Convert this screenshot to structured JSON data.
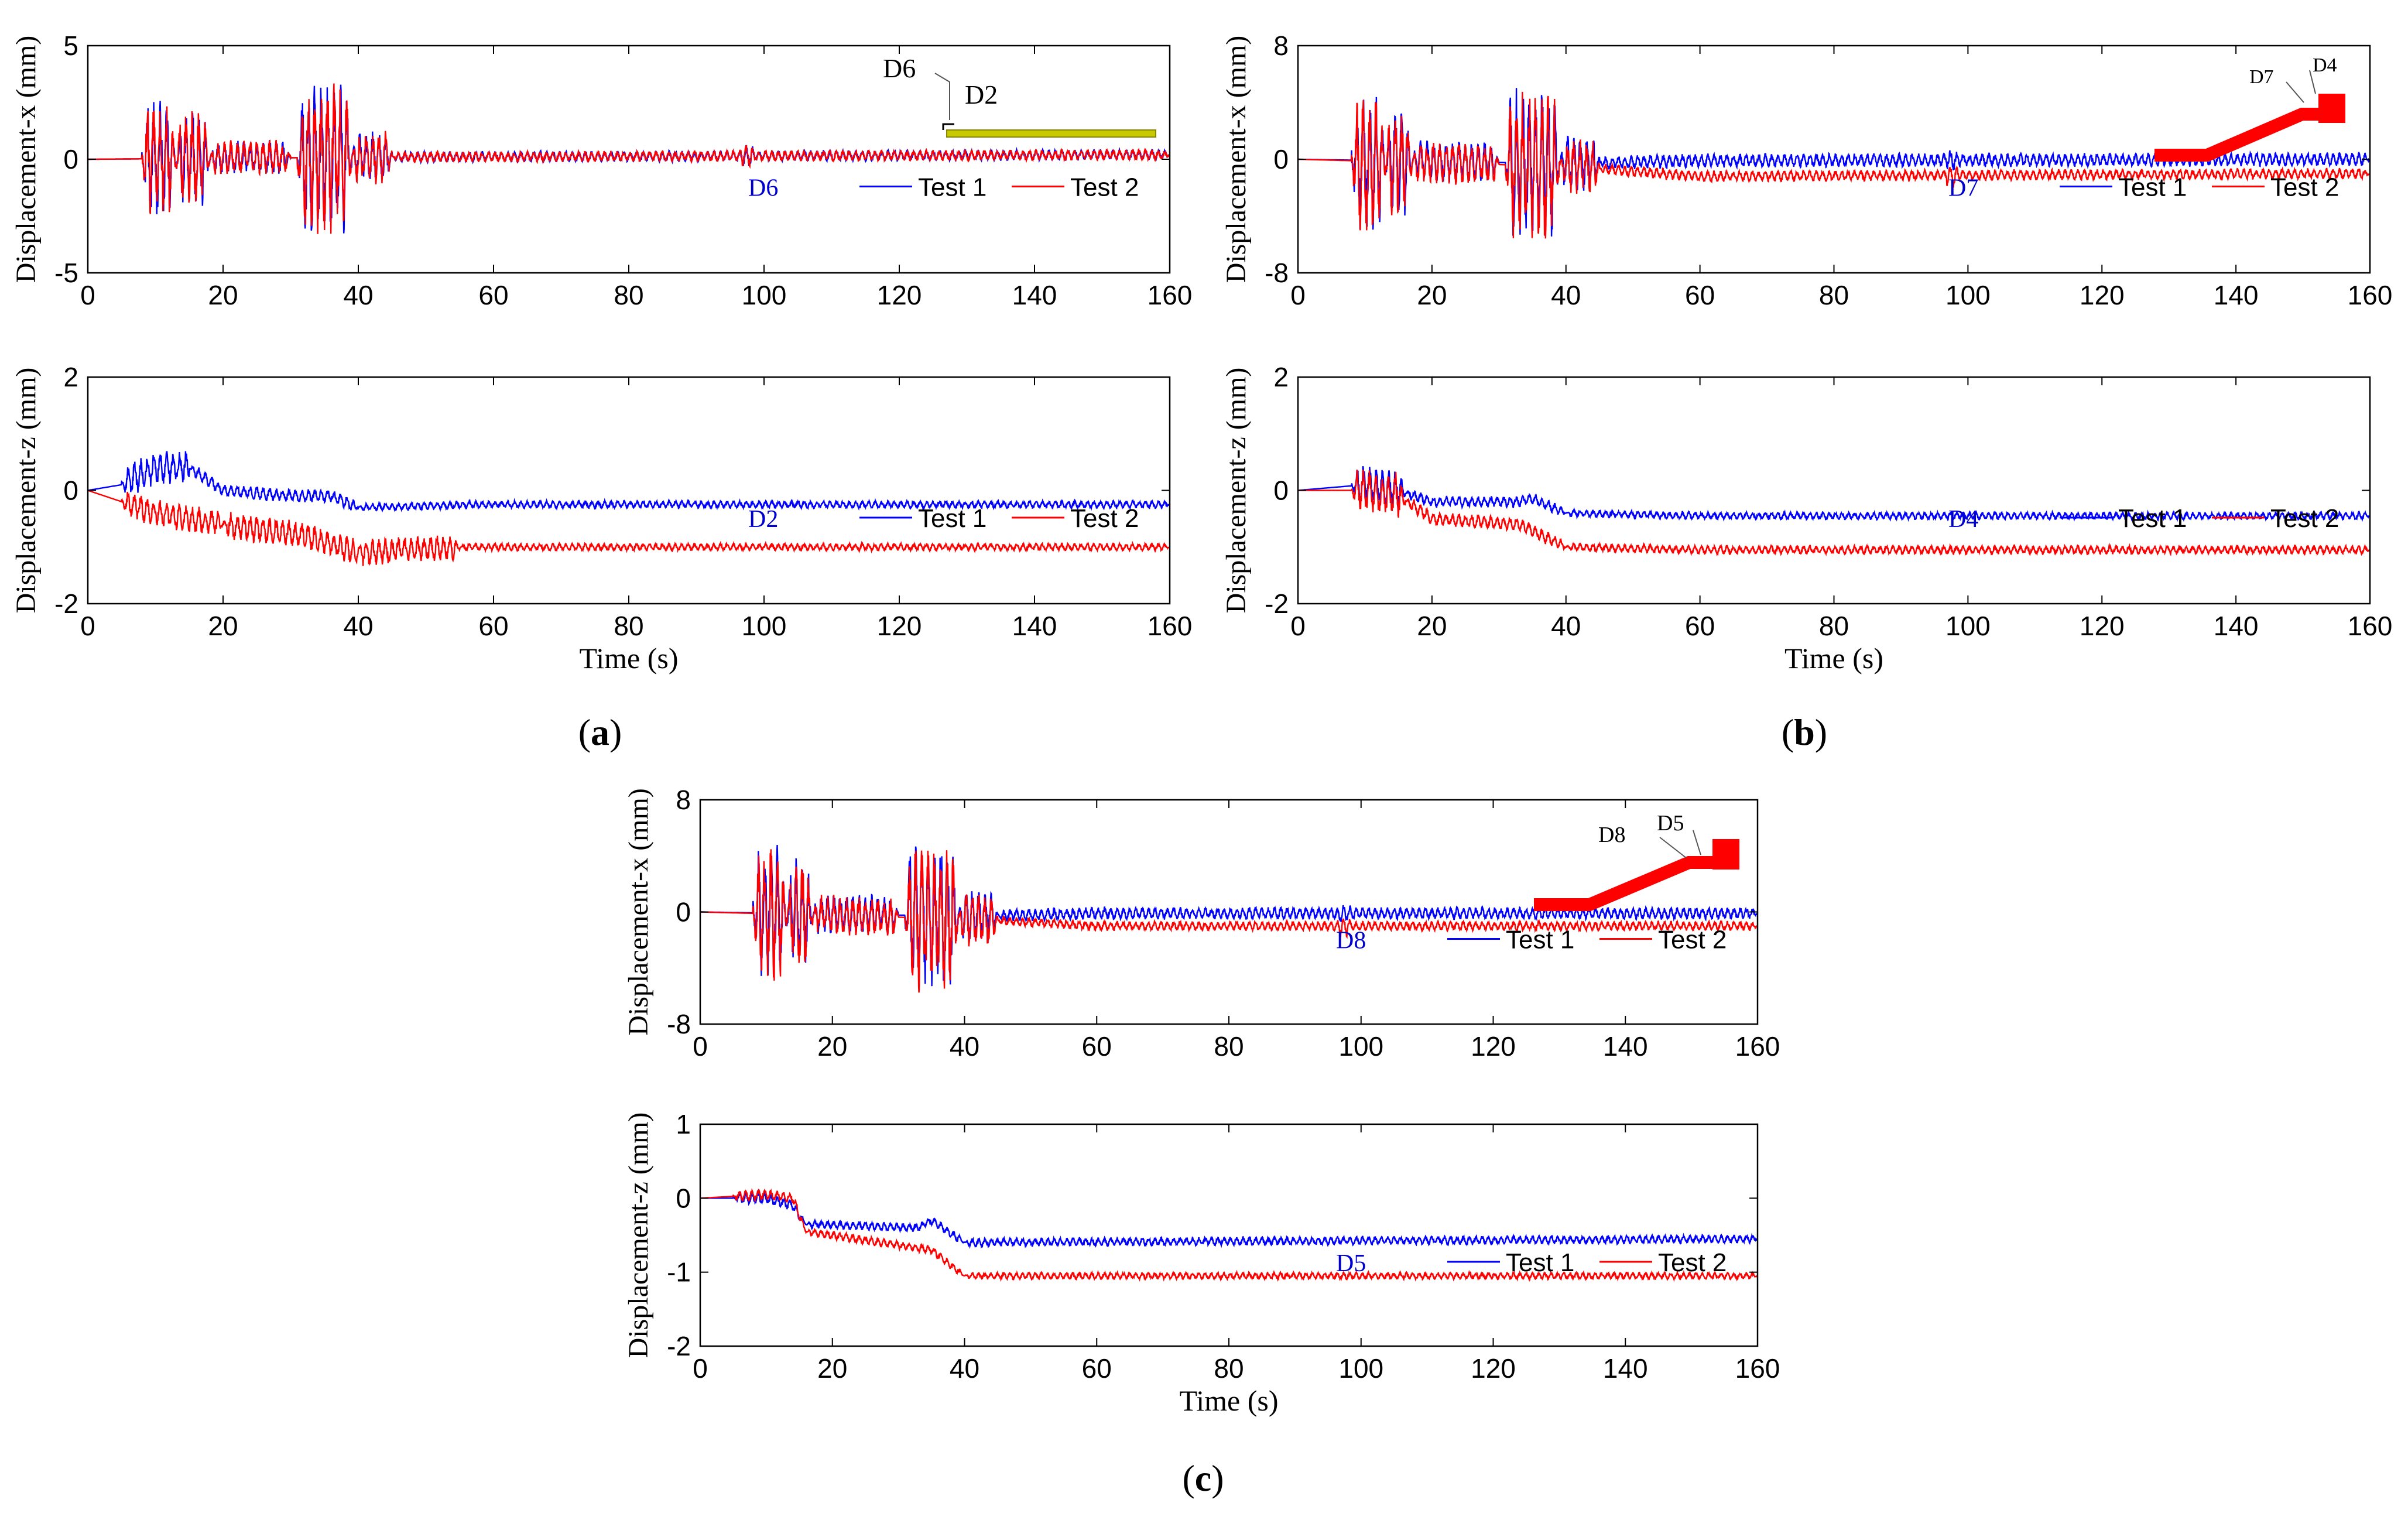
{
  "colors": {
    "test1": "#0000FF",
    "test2": "#FF0000",
    "annotation": "#0000CD",
    "frame": "#000000",
    "tray": "#C9C900"
  },
  "panels": [
    {
      "label_pre": "(",
      "label_letter": "a",
      "label_post": ")"
    },
    {
      "label_pre": "(",
      "label_letter": "b",
      "label_post": ")"
    },
    {
      "label_pre": "(",
      "label_letter": "c",
      "label_post": ")"
    }
  ],
  "insets": {
    "a": {
      "labels": [
        "D6",
        "D2"
      ]
    },
    "b": {
      "labels": [
        "D7",
        "D4"
      ]
    },
    "c": {
      "labels": [
        "D8",
        "D5"
      ]
    }
  },
  "chart_data": [
    {
      "id": "a-x",
      "type": "line",
      "ylabel": "Displacement-x (mm)",
      "xlabel": "",
      "xlim": [
        0,
        160
      ],
      "ylim": [
        -5,
        5
      ],
      "xticks": [
        0,
        20,
        40,
        60,
        80,
        100,
        120,
        140,
        160
      ],
      "yticks": [
        -5,
        0,
        5
      ],
      "annotation": "D6",
      "series": [
        {
          "name": "Test 1",
          "drift": [
            [
              0,
              0
            ],
            [
              45,
              0.1
            ],
            [
              160,
              0.2
            ]
          ],
          "bursts": [
            [
              8,
              13,
              2.6
            ],
            [
              13,
              18,
              2.2
            ],
            [
              18,
              30,
              0.8
            ],
            [
              31,
              39,
              3.4
            ],
            [
              39,
              45,
              1.2
            ],
            [
              45,
              160,
              0.25
            ],
            [
              96,
              99,
              0.5
            ]
          ]
        },
        {
          "name": "Test 2",
          "drift": [
            [
              0,
              0
            ],
            [
              45,
              0.1
            ],
            [
              160,
              0.2
            ]
          ],
          "bursts": [
            [
              8,
              13,
              2.6
            ],
            [
              13,
              18,
              2.2
            ],
            [
              18,
              30,
              0.8
            ],
            [
              31,
              39,
              3.4
            ],
            [
              39,
              45,
              1.2
            ],
            [
              45,
              160,
              0.25
            ],
            [
              96,
              99,
              0.5
            ]
          ]
        }
      ]
    },
    {
      "id": "a-z",
      "type": "line",
      "ylabel": "Displacement-z (mm)",
      "xlabel": "Time (s)",
      "xlim": [
        0,
        160
      ],
      "ylim": [
        -2,
        2
      ],
      "xticks": [
        0,
        20,
        40,
        60,
        80,
        100,
        120,
        140,
        160
      ],
      "yticks": [
        -2,
        0,
        2
      ],
      "annotation": "D2",
      "series": [
        {
          "name": "Test 1",
          "drift": [
            [
              0,
              0
            ],
            [
              5,
              0.1
            ],
            [
              10,
              0.4
            ],
            [
              15,
              0.4
            ],
            [
              20,
              0.0
            ],
            [
              30,
              -0.1
            ],
            [
              36,
              -0.1
            ],
            [
              40,
              -0.3
            ],
            [
              60,
              -0.25
            ],
            [
              160,
              -0.25
            ]
          ],
          "bursts": [
            [
              5,
              15,
              0.3
            ],
            [
              15,
              40,
              0.12
            ],
            [
              40,
              160,
              0.07
            ],
            [
              14,
              15,
              0.8
            ]
          ]
        },
        {
          "name": "Test 2",
          "drift": [
            [
              0,
              0
            ],
            [
              10,
              -0.4
            ],
            [
              20,
              -0.6
            ],
            [
              32,
              -0.8
            ],
            [
              40,
              -1.1
            ],
            [
              55,
              -1.0
            ],
            [
              160,
              -1.0
            ]
          ],
          "bursts": [
            [
              5,
              20,
              0.25
            ],
            [
              20,
              55,
              0.25
            ],
            [
              55,
              160,
              0.07
            ]
          ]
        }
      ]
    },
    {
      "id": "b-x",
      "type": "line",
      "ylabel": "Displacement-x (mm)",
      "xlabel": "",
      "xlim": [
        0,
        160
      ],
      "ylim": [
        -8,
        8
      ],
      "xticks": [
        0,
        20,
        40,
        60,
        80,
        100,
        120,
        140,
        160
      ],
      "yticks": [
        -8,
        0,
        8
      ],
      "annotation": "D7",
      "series": [
        {
          "name": "Test 1",
          "drift": [
            [
              0,
              0
            ],
            [
              40,
              -0.3
            ],
            [
              60,
              -0.1
            ],
            [
              160,
              0
            ]
          ],
          "bursts": [
            [
              8,
              13,
              5.0
            ],
            [
              13,
              17,
              4.0
            ],
            [
              17,
              30,
              1.5
            ],
            [
              31,
              39,
              5.5
            ],
            [
              39,
              45,
              2.0
            ],
            [
              45,
              160,
              0.5
            ],
            [
              96,
              99,
              0.8
            ]
          ]
        },
        {
          "name": "Test 2",
          "drift": [
            [
              0,
              0
            ],
            [
              40,
              -0.5
            ],
            [
              60,
              -1.2
            ],
            [
              160,
              -1.0
            ]
          ],
          "bursts": [
            [
              8,
              13,
              5.0
            ],
            [
              13,
              17,
              4.0
            ],
            [
              17,
              30,
              1.5
            ],
            [
              31,
              39,
              5.5
            ],
            [
              39,
              45,
              2.0
            ],
            [
              45,
              160,
              0.4
            ],
            [
              96,
              99,
              0.8
            ]
          ]
        }
      ]
    },
    {
      "id": "b-z",
      "type": "line",
      "ylabel": "Displacement-z (mm)",
      "xlabel": "Time (s)",
      "xlim": [
        0,
        160
      ],
      "ylim": [
        -2,
        2
      ],
      "xticks": [
        0,
        20,
        40,
        60,
        80,
        100,
        120,
        140,
        160
      ],
      "yticks": [
        -2,
        0,
        2
      ],
      "annotation": "D4",
      "series": [
        {
          "name": "Test 1",
          "drift": [
            [
              0,
              0
            ],
            [
              10,
              0.1
            ],
            [
              15,
              0.0
            ],
            [
              20,
              -0.2
            ],
            [
              33,
              -0.2
            ],
            [
              35,
              -0.15
            ],
            [
              40,
              -0.4
            ],
            [
              60,
              -0.45
            ],
            [
              160,
              -0.45
            ]
          ],
          "bursts": [
            [
              8,
              16,
              0.35
            ],
            [
              16,
              40,
              0.1
            ],
            [
              40,
              160,
              0.07
            ]
          ]
        },
        {
          "name": "Test 2",
          "drift": [
            [
              0,
              0
            ],
            [
              10,
              0.0
            ],
            [
              15,
              -0.1
            ],
            [
              20,
              -0.5
            ],
            [
              33,
              -0.6
            ],
            [
              40,
              -1.0
            ],
            [
              60,
              -1.05
            ],
            [
              160,
              -1.05
            ]
          ],
          "bursts": [
            [
              8,
              16,
              0.4
            ],
            [
              14,
              15,
              1.0
            ],
            [
              16,
              40,
              0.12
            ],
            [
              40,
              160,
              0.08
            ]
          ]
        }
      ]
    },
    {
      "id": "c-x",
      "type": "line",
      "ylabel": "Displacement-x (mm)",
      "xlabel": "",
      "xlim": [
        0,
        160
      ],
      "ylim": [
        -8,
        8
      ],
      "xticks": [
        0,
        20,
        40,
        60,
        80,
        100,
        120,
        140,
        160
      ],
      "yticks": [
        -8,
        0,
        8
      ],
      "annotation": "D8",
      "series": [
        {
          "name": "Test 1",
          "drift": [
            [
              0,
              0
            ],
            [
              40,
              -0.3
            ],
            [
              60,
              -0.1
            ],
            [
              160,
              -0.1
            ]
          ],
          "bursts": [
            [
              8,
              13,
              5.0
            ],
            [
              13,
              17,
              4.0
            ],
            [
              17,
              30,
              1.5
            ],
            [
              31,
              39,
              5.5
            ],
            [
              39,
              45,
              2.0
            ],
            [
              45,
              160,
              0.45
            ],
            [
              96,
              99,
              0.8
            ]
          ]
        },
        {
          "name": "Test 2",
          "drift": [
            [
              0,
              0
            ],
            [
              40,
              -0.5
            ],
            [
              60,
              -1.0
            ],
            [
              160,
              -1.0
            ]
          ],
          "bursts": [
            [
              8,
              13,
              5.0
            ],
            [
              13,
              17,
              4.0
            ],
            [
              17,
              30,
              1.5
            ],
            [
              31,
              39,
              5.5
            ],
            [
              39,
              45,
              2.0
            ],
            [
              45,
              160,
              0.35
            ],
            [
              96,
              99,
              0.8
            ]
          ]
        }
      ]
    },
    {
      "id": "c-z",
      "type": "line",
      "ylabel": "Displacement-z (mm)",
      "xlabel": "Time (s)",
      "xlim": [
        0,
        160
      ],
      "ylim": [
        -2,
        1
      ],
      "xticks": [
        0,
        20,
        40,
        60,
        80,
        100,
        120,
        140,
        160
      ],
      "yticks": [
        -2,
        -1,
        0,
        1
      ],
      "annotation": "D5",
      "series": [
        {
          "name": "Test 1",
          "drift": [
            [
              0,
              0
            ],
            [
              10,
              0.0
            ],
            [
              14,
              -0.1
            ],
            [
              16,
              -0.35
            ],
            [
              33,
              -0.4
            ],
            [
              35,
              -0.3
            ],
            [
              40,
              -0.6
            ],
            [
              160,
              -0.55
            ]
          ],
          "bursts": [
            [
              5,
              16,
              0.08
            ],
            [
              16,
              40,
              0.06
            ],
            [
              40,
              160,
              0.06
            ]
          ]
        },
        {
          "name": "Test 2",
          "drift": [
            [
              0,
              0
            ],
            [
              10,
              0.05
            ],
            [
              14,
              0.0
            ],
            [
              16,
              -0.45
            ],
            [
              35,
              -0.7
            ],
            [
              40,
              -1.05
            ],
            [
              160,
              -1.05
            ]
          ],
          "bursts": [
            [
              5,
              16,
              0.08
            ],
            [
              16,
              40,
              0.06
            ],
            [
              40,
              160,
              0.05
            ]
          ]
        }
      ]
    }
  ]
}
